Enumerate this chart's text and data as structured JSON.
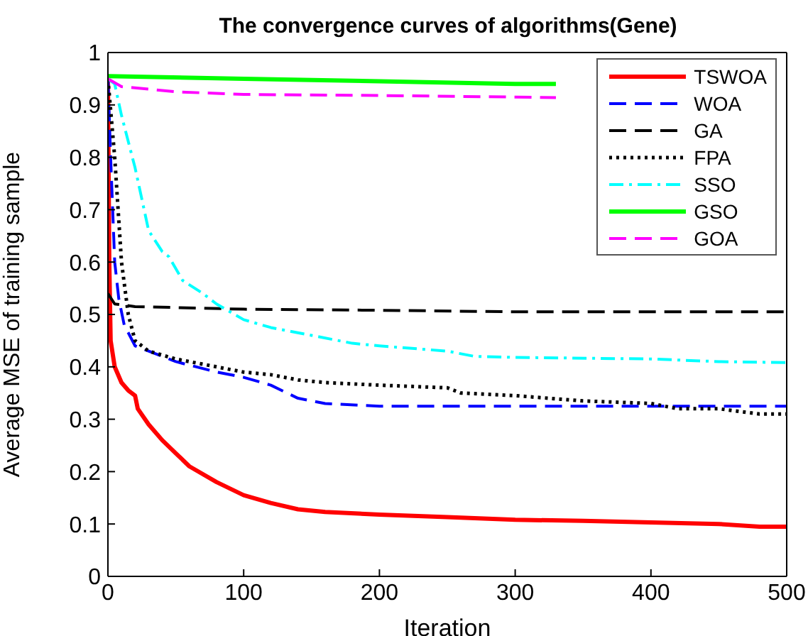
{
  "chart_data": {
    "type": "line",
    "title": "The convergence curves of algorithms(Gene)",
    "xlabel": "Iteration",
    "ylabel": "Average MSE of training sample",
    "xlim": [
      0,
      500
    ],
    "xticks": [
      0,
      100,
      200,
      300,
      400,
      500
    ],
    "ylim": [
      0,
      1
    ],
    "yticks": [
      0,
      0.1,
      0.2,
      0.3,
      0.4,
      0.5,
      0.6,
      0.7,
      0.8,
      0.9,
      1
    ],
    "grid": false,
    "legend": "top right",
    "marker": "none",
    "series": [
      {
        "name": "TSWOA",
        "color": "#ff0000",
        "line_style": "solid",
        "x": [
          0,
          1,
          2,
          5,
          10,
          15,
          20,
          22,
          30,
          40,
          50,
          60,
          80,
          100,
          120,
          140,
          160,
          200,
          250,
          300,
          350,
          400,
          450,
          480,
          500
        ],
        "values": [
          0.95,
          0.6,
          0.45,
          0.4,
          0.37,
          0.355,
          0.345,
          0.32,
          0.29,
          0.26,
          0.235,
          0.21,
          0.18,
          0.155,
          0.14,
          0.128,
          0.123,
          0.118,
          0.113,
          0.108,
          0.106,
          0.103,
          0.1,
          0.095,
          0.095
        ]
      },
      {
        "name": "WOA",
        "color": "#0000ff",
        "line_style": "dashed",
        "x": [
          0,
          2,
          5,
          8,
          12,
          20,
          30,
          50,
          80,
          100,
          120,
          140,
          160,
          200,
          250,
          500
        ],
        "values": [
          0.95,
          0.8,
          0.6,
          0.53,
          0.48,
          0.44,
          0.43,
          0.41,
          0.39,
          0.38,
          0.365,
          0.34,
          0.33,
          0.325,
          0.325,
          0.325
        ]
      },
      {
        "name": "GA",
        "color": "#000000",
        "line_style": "dashed",
        "x": [
          0,
          5,
          20,
          100,
          200,
          300,
          500
        ],
        "values": [
          0.54,
          0.52,
          0.515,
          0.51,
          0.508,
          0.505,
          0.505
        ]
      },
      {
        "name": "FPA",
        "color": "#000000",
        "line_style": "dotted",
        "x": [
          0,
          5,
          10,
          15,
          20,
          30,
          50,
          80,
          100,
          120,
          140,
          160,
          200,
          250,
          260,
          300,
          350,
          400,
          420,
          450,
          480,
          500
        ],
        "values": [
          0.95,
          0.8,
          0.6,
          0.5,
          0.45,
          0.43,
          0.415,
          0.4,
          0.39,
          0.385,
          0.375,
          0.37,
          0.365,
          0.36,
          0.35,
          0.345,
          0.335,
          0.33,
          0.32,
          0.32,
          0.31,
          0.31
        ]
      },
      {
        "name": "SSO",
        "color": "#00ffff",
        "line_style": "dashdot",
        "x": [
          0,
          5,
          10,
          20,
          30,
          40,
          45,
          55,
          70,
          80,
          100,
          120,
          150,
          180,
          200,
          250,
          270,
          300,
          400,
          450,
          500
        ],
        "values": [
          0.95,
          0.94,
          0.88,
          0.78,
          0.66,
          0.62,
          0.61,
          0.565,
          0.54,
          0.52,
          0.49,
          0.475,
          0.46,
          0.445,
          0.44,
          0.43,
          0.42,
          0.418,
          0.415,
          0.41,
          0.408
        ]
      },
      {
        "name": "GSO",
        "color": "#00ff00",
        "line_style": "solid",
        "x": [
          0,
          100,
          200,
          300,
          330
        ],
        "values": [
          0.955,
          0.95,
          0.945,
          0.94,
          0.94
        ]
      },
      {
        "name": "GOA",
        "color": "#ff00ff",
        "line_style": "dashed",
        "x": [
          0,
          10,
          50,
          100,
          200,
          300,
          330
        ],
        "values": [
          0.95,
          0.935,
          0.925,
          0.92,
          0.918,
          0.915,
          0.914
        ]
      }
    ]
  }
}
